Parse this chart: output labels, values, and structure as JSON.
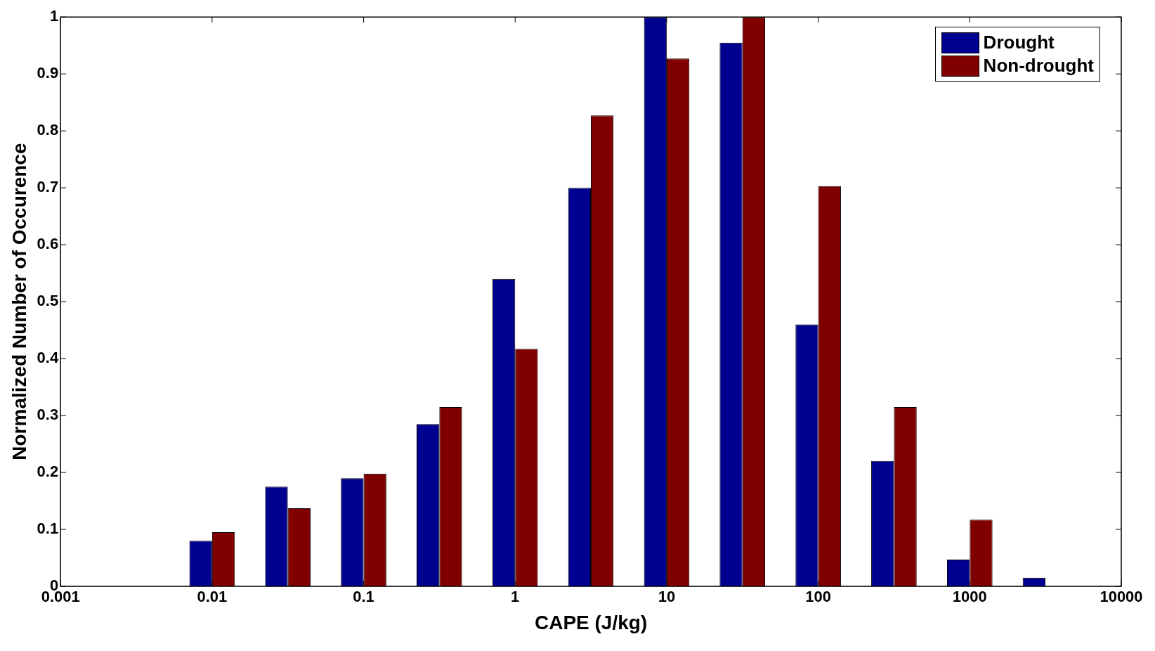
{
  "chart_data": {
    "type": "bar",
    "xlabel": "CAPE (J/kg)",
    "ylabel": "Normalized Number of Occurence",
    "x": [
      0.01,
      0.0316,
      0.1,
      0.316,
      1,
      3.16,
      10,
      31.6,
      100,
      316,
      1000,
      3160
    ],
    "series": [
      {
        "name": "Drought",
        "color": "#000090",
        "values": [
          0.08,
          0.175,
          0.19,
          0.285,
          0.54,
          0.7,
          1.0,
          0.955,
          0.46,
          0.22,
          0.047,
          0.015
        ]
      },
      {
        "name": "Non-drought",
        "color": "#800000",
        "values": [
          0.095,
          0.137,
          0.198,
          0.315,
          0.417,
          0.827,
          0.927,
          1.0,
          0.703,
          0.315,
          0.117,
          0
        ]
      }
    ],
    "log": "x",
    "xlim": [
      0.001,
      10000
    ],
    "xticks": [
      0.001,
      0.01,
      0.1,
      1,
      10,
      100,
      1000,
      10000
    ],
    "ylim": [
      0,
      1
    ],
    "yticks": [
      0,
      0.1,
      0.2,
      0.3,
      0.4,
      0.5,
      0.6,
      0.7,
      0.8,
      0.9,
      1
    ],
    "grid": false,
    "legend": "top right"
  }
}
